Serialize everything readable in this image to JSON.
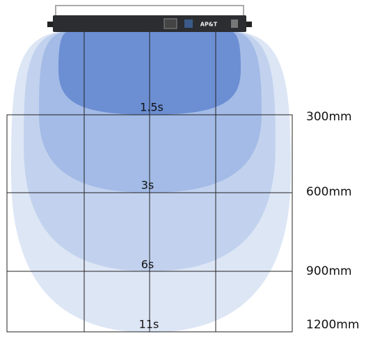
{
  "device": {
    "label": "AP&T"
  },
  "zones": [
    {
      "time": "1.5s",
      "distance": "300mm"
    },
    {
      "time": "3s",
      "distance": "600mm"
    },
    {
      "time": "6s",
      "distance": "900mm"
    },
    {
      "time": "11s",
      "distance": "1200mm"
    }
  ]
}
